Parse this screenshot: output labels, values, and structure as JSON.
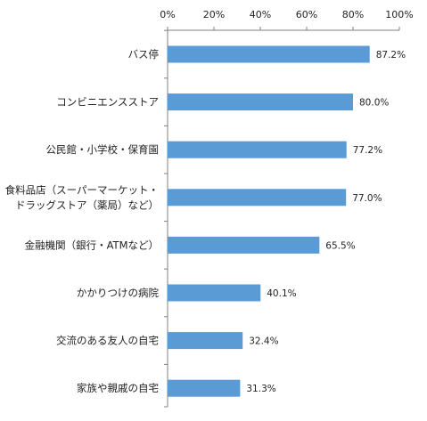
{
  "chart_data": {
    "type": "bar",
    "orientation": "horizontal",
    "axis_position": "top",
    "grid": false,
    "xlim": [
      0,
      100
    ],
    "ticks": [
      "0%",
      "20%",
      "40%",
      "60%",
      "80%",
      "100%"
    ],
    "categories": [
      [
        "バス停"
      ],
      [
        "コンビニエンスストア"
      ],
      [
        "公民館・小学校・保育園"
      ],
      [
        "食料品店（スーパーマーケット・",
        "ドラッグストア（薬局）など）"
      ],
      [
        "金融機関（銀行・ATMなど）"
      ],
      [
        "かかりつけの病院"
      ],
      [
        "交流のある友人の自宅"
      ],
      [
        "家族や親戚の自宅"
      ]
    ],
    "values": [
      87.2,
      80.0,
      77.2,
      77.0,
      65.5,
      40.1,
      32.4,
      31.3
    ],
    "value_labels": [
      "87.2%",
      "80.0%",
      "77.2%",
      "77.0%",
      "65.5%",
      "40.1%",
      "32.4%",
      "31.3%"
    ],
    "bar_color": "#5B9BD5",
    "axis_color": "#808080",
    "text_color": "#222222"
  }
}
